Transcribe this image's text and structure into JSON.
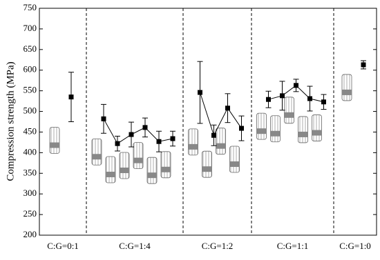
{
  "chart_data": {
    "type": "grouped-errorbar",
    "y_label": "Compression strength (MPa)",
    "ylim": [
      200,
      750
    ],
    "yticks": [
      200,
      250,
      300,
      350,
      400,
      450,
      500,
      550,
      600,
      650,
      700,
      750
    ],
    "color": "#000000",
    "groups": [
      {
        "label": "C:G=0:1",
        "values": [
          535
        ],
        "errors": [
          60
        ]
      },
      {
        "label": "C:G=1:4",
        "values": [
          482,
          422,
          444,
          461,
          427,
          434
        ],
        "errors": [
          35,
          18,
          30,
          23,
          25,
          18
        ]
      },
      {
        "label": "C:G=1:2",
        "values": [
          546,
          442,
          508,
          459
        ],
        "errors": [
          75,
          25,
          35,
          30
        ]
      },
      {
        "label": "C:G=1:1",
        "values": [
          529,
          538,
          563,
          531,
          523
        ],
        "errors": [
          20,
          35,
          15,
          30,
          18
        ]
      },
      {
        "label": "C:G=1:0",
        "values": [
          613
        ],
        "errors": [
          10
        ]
      }
    ]
  }
}
